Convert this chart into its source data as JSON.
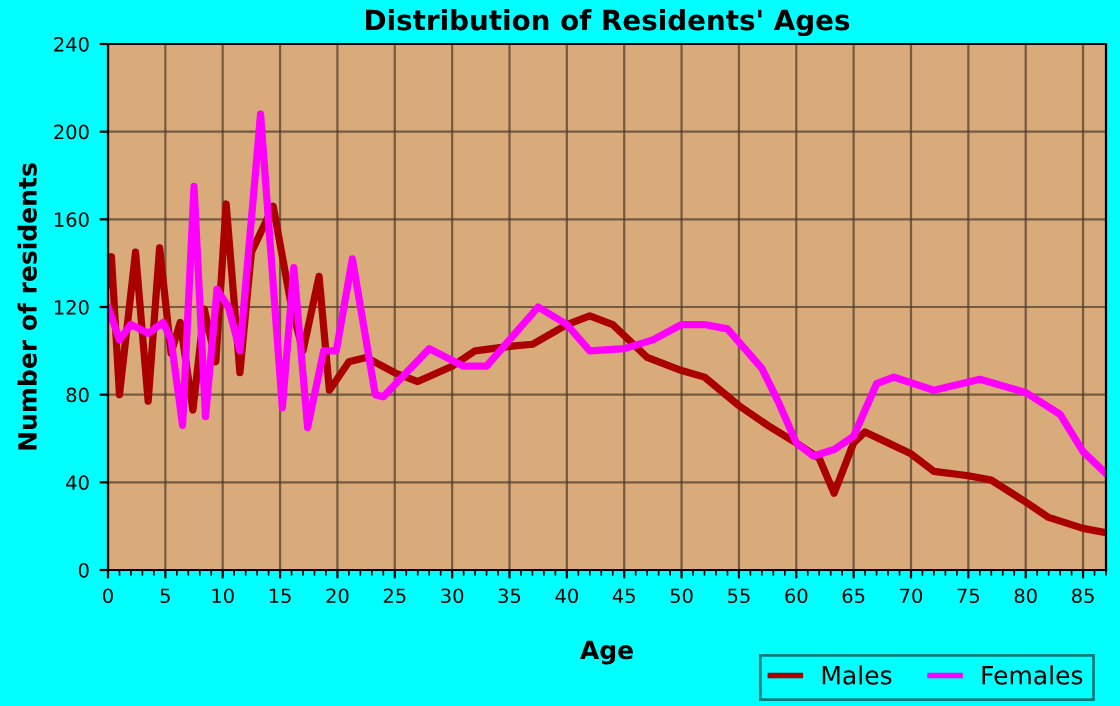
{
  "chart_data": {
    "type": "line",
    "title": "Distribution of Residents' Ages",
    "xlabel": "Age",
    "ylabel": "Number of residents",
    "xlim": [
      0,
      87
    ],
    "xticks": [
      0,
      5,
      10,
      15,
      20,
      25,
      30,
      35,
      40,
      45,
      50,
      55,
      60,
      65,
      70,
      75,
      80,
      85
    ],
    "ylim": [
      0,
      240
    ],
    "yticks": [
      0,
      40,
      80,
      120,
      160,
      200,
      240
    ],
    "grid": true,
    "legend": "bottom right",
    "marker": "none",
    "line_style": "solid",
    "series": [
      {
        "name": "Males",
        "color": "#aa0000",
        "x": [
          0,
          0.3,
          1,
          2.4,
          3.5,
          4.5,
          5.5,
          6.3,
          7.4,
          8.4,
          9.4,
          10.3,
          11.5,
          12.5,
          14.4,
          16,
          17,
          18.4,
          19.3,
          21,
          22.5,
          25,
          27,
          30,
          32,
          35,
          37,
          40,
          42,
          44,
          47,
          50,
          52,
          55,
          57.5,
          60,
          62,
          63.3,
          65,
          66,
          68,
          70,
          72,
          75,
          77,
          80,
          82,
          85,
          87
        ],
        "values": [
          130,
          143,
          80,
          145,
          77,
          147,
          99,
          113,
          73,
          119,
          95,
          167,
          90,
          145,
          166,
          120,
          100,
          134,
          82,
          95,
          97,
          90,
          86,
          93,
          100,
          102,
          103,
          112,
          116,
          112,
          97,
          91,
          88,
          75,
          66,
          58,
          51,
          35,
          58,
          63,
          58,
          53,
          45,
          43,
          41,
          31,
          24,
          19,
          17
        ]
      },
      {
        "name": "Females",
        "color": "#ff00ff",
        "x": [
          0,
          1,
          2,
          3.5,
          4.8,
          5.5,
          6.5,
          7.5,
          8.5,
          9.5,
          10.5,
          11.5,
          13.3,
          15.2,
          16.2,
          17.4,
          18.8,
          19.9,
          21.3,
          23.3,
          24,
          26,
          28,
          31,
          33,
          35,
          37.5,
          40,
          42,
          45,
          47.5,
          50,
          52,
          54,
          57,
          58.5,
          60,
          61.5,
          63.3,
          65,
          67,
          68.5,
          72,
          76,
          80,
          83,
          85,
          87
        ],
        "values": [
          120,
          105,
          112,
          108,
          113,
          105,
          66,
          175,
          70,
          128,
          120,
          100,
          208,
          74,
          138,
          65,
          100,
          100,
          142,
          80,
          79,
          90,
          101,
          93,
          93,
          105,
          120,
          112,
          100,
          101,
          105,
          112,
          112,
          110,
          92,
          76,
          58,
          52,
          55,
          61,
          85,
          88,
          82,
          87,
          81,
          71,
          54,
          44
        ]
      }
    ]
  }
}
